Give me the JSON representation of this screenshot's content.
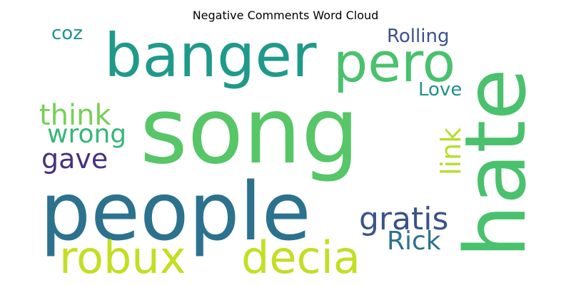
{
  "title": "Negative Comments Word Cloud",
  "words": [
    {
      "text": "song",
      "color": "#56c667"
    },
    {
      "text": "people",
      "color": "#2c728e"
    },
    {
      "text": "hate",
      "color": "#4ac16d"
    },
    {
      "text": "banger",
      "color": "#1f9a8a"
    },
    {
      "text": "pero",
      "color": "#4ac16d"
    },
    {
      "text": "robux",
      "color": "#c2df23"
    },
    {
      "text": "decia",
      "color": "#c2df23"
    },
    {
      "text": "think",
      "color": "#75d054"
    },
    {
      "text": "wrong",
      "color": "#35b779"
    },
    {
      "text": "gave",
      "color": "#46327e"
    },
    {
      "text": "gratis",
      "color": "#3b528b"
    },
    {
      "text": "Rick",
      "color": "#2c728e"
    },
    {
      "text": "link",
      "color": "#b5de2b"
    },
    {
      "text": "Rolling",
      "color": "#3b528b"
    },
    {
      "text": "Love",
      "color": "#21918c"
    },
    {
      "text": "coz",
      "color": "#21918c"
    }
  ]
}
